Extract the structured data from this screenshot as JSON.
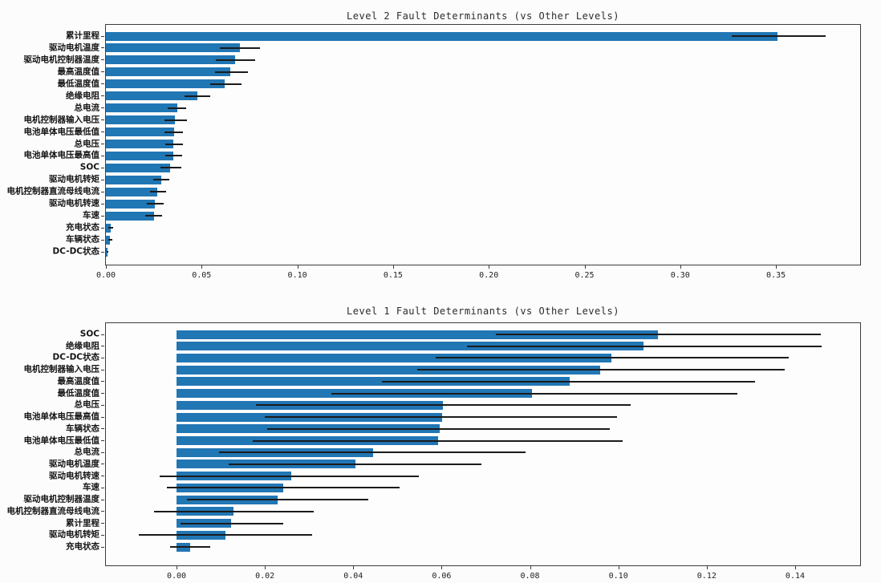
{
  "chart_data": [
    {
      "id": "level2",
      "type": "bar",
      "orientation": "horizontal",
      "title": "Level 2 Fault Determinants (vs Other Levels)",
      "bar_color": "#2176b4",
      "error_color": "#1b1b1b",
      "grid": false,
      "legend": "none",
      "xlim": [
        0,
        0.394
      ],
      "x_tick_labels": [
        "0.00",
        "0.05",
        "0.10",
        "0.15",
        "0.20",
        "0.25",
        "0.30",
        "0.35"
      ],
      "x_tick_values": [
        0,
        0.05,
        0.1,
        0.15,
        0.2,
        0.25,
        0.3,
        0.35
      ],
      "categories": [
        "累计里程",
        "驱动电机温度",
        "驱动电机控制器温度",
        "最高温度值",
        "最低温度值",
        "绝缘电阻",
        "总电流",
        "电机控制器输入电压",
        "电池单体电压最低值",
        "总电压",
        "电池单体电压最高值",
        "SOC",
        "驱动电机转矩",
        "电机控制器直流母线电流",
        "驱动电机转速",
        "车速",
        "充电状态",
        "车辆状态",
        "DC-DC状态"
      ],
      "values": [
        0.351,
        0.07,
        0.0675,
        0.065,
        0.062,
        0.0477,
        0.0371,
        0.0359,
        0.0355,
        0.0352,
        0.0354,
        0.0337,
        0.0291,
        0.027,
        0.0257,
        0.0253,
        0.0025,
        0.0021,
        0.0008
      ],
      "error_low": [
        0.327,
        0.0595,
        0.0574,
        0.057,
        0.0544,
        0.0409,
        0.0321,
        0.0304,
        0.0308,
        0.0312,
        0.0312,
        0.0287,
        0.0249,
        0.0232,
        0.0215,
        0.0207,
        0.0013,
        0.0013,
        0.0004
      ],
      "error_high": [
        0.376,
        0.0806,
        0.0781,
        0.0743,
        0.0709,
        0.0544,
        0.0418,
        0.0422,
        0.0401,
        0.0401,
        0.0397,
        0.0392,
        0.0333,
        0.0316,
        0.03,
        0.0295,
        0.0038,
        0.0034,
        0.0013
      ]
    },
    {
      "id": "level1",
      "type": "bar",
      "orientation": "horizontal",
      "title": "Level 1 Fault Determinants (vs Other Levels)",
      "bar_color": "#2176b4",
      "error_color": "#1b1b1b",
      "grid": false,
      "legend": "none",
      "xlim": [
        -0.016,
        0.155
      ],
      "x_tick_labels": [
        "0.00",
        "0.02",
        "0.04",
        "0.06",
        "0.08",
        "0.10",
        "0.12",
        "0.14"
      ],
      "x_tick_values": [
        0,
        0.02,
        0.04,
        0.06,
        0.08,
        0.1,
        0.12,
        0.14
      ],
      "categories": [
        "SOC",
        "绝缘电阻",
        "DC-DC状态",
        "电机控制器输入电压",
        "最高温度值",
        "最低温度值",
        "总电压",
        "电池单体电压最高值",
        "车辆状态",
        "电池单体电压最低值",
        "总电流",
        "驱动电机温度",
        "驱动电机转速",
        "车速",
        "驱动电机控制器温度",
        "电机控制器直流母线电流",
        "累计里程",
        "驱动电机转矩",
        "充电状态"
      ],
      "values": [
        0.109,
        0.1057,
        0.0984,
        0.0959,
        0.089,
        0.0804,
        0.0603,
        0.0601,
        0.0596,
        0.0592,
        0.0445,
        0.0405,
        0.026,
        0.0242,
        0.0229,
        0.0129,
        0.0123,
        0.0111,
        0.0031
      ],
      "error_low": [
        0.0723,
        0.0657,
        0.0587,
        0.0545,
        0.0465,
        0.035,
        0.018,
        0.02,
        0.0205,
        0.0173,
        0.0096,
        0.0118,
        -0.0038,
        -0.0022,
        0.0024,
        -0.0051,
        0.0009,
        -0.0085,
        -0.0015
      ],
      "error_high": [
        0.1458,
        0.146,
        0.1386,
        0.1376,
        0.131,
        0.127,
        0.1028,
        0.0997,
        0.098,
        0.101,
        0.079,
        0.069,
        0.0548,
        0.0505,
        0.0434,
        0.031,
        0.0241,
        0.0307,
        0.0076
      ]
    }
  ]
}
